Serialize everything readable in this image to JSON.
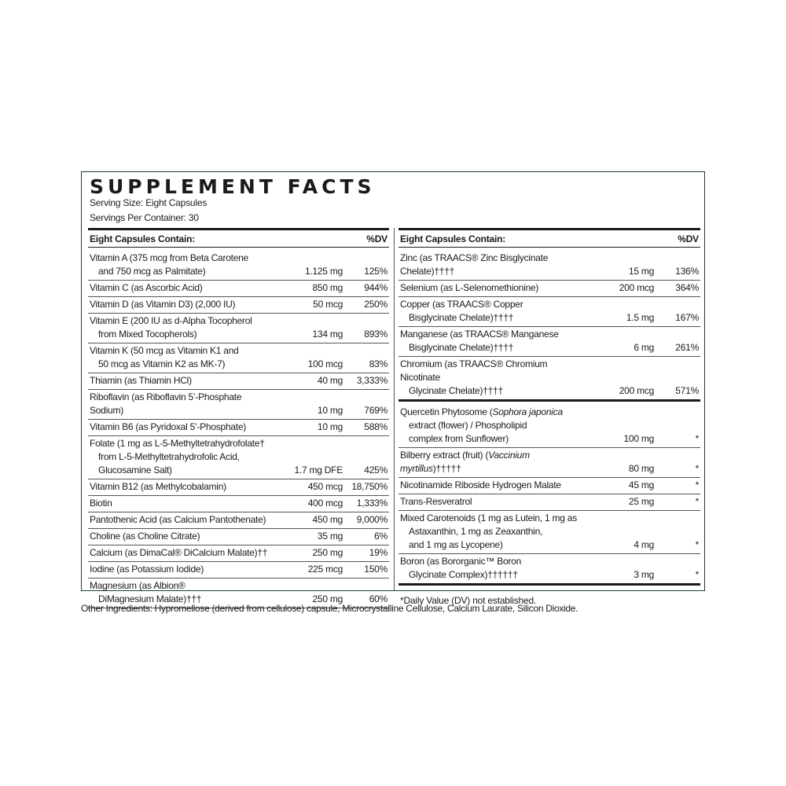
{
  "title": "SUPPLEMENT FACTS",
  "serving_size": "Serving Size: Eight Capsules",
  "servings_per_container": "Servings Per Container: 30",
  "colors": {
    "border": "#1f3a2d",
    "text": "#1a1a1a"
  },
  "left": {
    "header": {
      "label": "Eight Capsules Contain:",
      "dv": "%DV"
    },
    "rows": [
      {
        "lines": [
          "Vitamin A (375 mcg from Beta Carotene",
          "and 750 mcg as Palmitate)"
        ],
        "amount": "1.125 mg",
        "dv": "125%"
      },
      {
        "lines": [
          "Vitamin C (as Ascorbic Acid)"
        ],
        "amount": "850 mg",
        "dv": "944%"
      },
      {
        "lines": [
          "Vitamin D (as Vitamin D3) (2,000 IU)"
        ],
        "amount": "50 mcg",
        "dv": "250%"
      },
      {
        "lines": [
          "Vitamin E (200 IU as d-Alpha Tocopherol",
          "from Mixed Tocopherols)"
        ],
        "amount": "134 mg",
        "dv": "893%"
      },
      {
        "lines": [
          "Vitamin K (50 mcg as Vitamin K1 and",
          "50 mcg as Vitamin K2 as MK-7)"
        ],
        "amount": "100 mcg",
        "dv": "83%"
      },
      {
        "lines": [
          "Thiamin (as Thiamin HCl)"
        ],
        "amount": "40 mg",
        "dv": "3,333%"
      },
      {
        "lines": [
          "Riboflavin (as Riboflavin 5’-Phosphate Sodium)"
        ],
        "amount": "10 mg",
        "dv": "769%"
      },
      {
        "lines": [
          "Vitamin B6 (as Pyridoxal 5’-Phosphate)"
        ],
        "amount": "10 mg",
        "dv": "588%"
      },
      {
        "lines": [
          "Folate (1 mg as L-5-Methyltetrahydrofolate†",
          "from L-5-Methyltetrahydrofolic Acid,",
          "Glucosamine Salt)"
        ],
        "amount": "1.7 mg DFE",
        "dv": "425%"
      },
      {
        "lines": [
          "Vitamin B12 (as Methylcobalamin)"
        ],
        "amount": "450 mcg",
        "dv": "18,750%"
      },
      {
        "lines": [
          "Biotin"
        ],
        "amount": "400 mcg",
        "dv": "1,333%"
      },
      {
        "lines": [
          "Pantothenic Acid (as Calcium Pantothenate)"
        ],
        "amount": "450 mg",
        "dv": "9,000%"
      },
      {
        "lines": [
          "Choline (as Choline Citrate)"
        ],
        "amount": "35 mg",
        "dv": "6%"
      },
      {
        "lines": [
          "Calcium (as DimaCal® DiCalcium Malate)††"
        ],
        "amount": "250 mg",
        "dv": "19%"
      },
      {
        "lines": [
          "Iodine (as Potassium Iodide)"
        ],
        "amount": "225 mcg",
        "dv": "150%"
      },
      {
        "lines": [
          "Magnesium (as Albion®",
          "DiMagnesium Malate)†††"
        ],
        "amount": "250 mg",
        "dv": "60%"
      }
    ]
  },
  "right": {
    "header": {
      "label": "Eight Capsules Contain:",
      "dv": "%DV"
    },
    "rows": [
      {
        "lines": [
          "Zinc (as TRAACS® Zinc Bisglycinate Chelate)††††"
        ],
        "amount": "15 mg",
        "dv": "136%"
      },
      {
        "lines": [
          "Selenium (as L-Selenomethionine)"
        ],
        "amount": "200 mcg",
        "dv": "364%"
      },
      {
        "lines": [
          "Copper (as TRAACS® Copper",
          "Bisglycinate Chelate)††††"
        ],
        "amount": "1.5 mg",
        "dv": "167%"
      },
      {
        "lines": [
          "Manganese (as TRAACS® Manganese",
          "Bisglycinate Chelate)††††"
        ],
        "amount": "6 mg",
        "dv": "261%"
      },
      {
        "lines": [
          "Chromium (as TRAACS® Chromium Nicotinate",
          "Glycinate Chelate)††††"
        ],
        "amount": "200 mcg",
        "dv": "571%",
        "thick": true
      },
      {
        "lines": [
          [
            "Quercetin Phytosome (",
            {
              "i": "Sophora japonica"
            }
          ],
          "extract (flower) / Phospholipid",
          "complex from Sunflower)"
        ],
        "amount": "100 mg",
        "dv": "*"
      },
      {
        "lines": [
          [
            "Bilberry extract (fruit) (",
            {
              "i": "Vaccinium myrtillus"
            },
            ")†††††"
          ]
        ],
        "amount": "80 mg",
        "dv": "*"
      },
      {
        "lines": [
          "Nicotinamide Riboside Hydrogen Malate"
        ],
        "amount": "45 mg",
        "dv": "*"
      },
      {
        "lines": [
          "Trans-Resveratrol"
        ],
        "amount": "25 mg",
        "dv": "*"
      },
      {
        "lines": [
          "Mixed Carotenoids (1 mg as Lutein, 1 mg as",
          "Astaxanthin, 1 mg as Zeaxanthin,",
          "and 1 mg as Lycopene)"
        ],
        "amount": "4 mg",
        "dv": "*"
      },
      {
        "lines": [
          "Boron (as Bororganic™ Boron",
          "Glycinate Complex)††††††"
        ],
        "amount": "3 mg",
        "dv": "*",
        "thick": true
      }
    ],
    "footnote": "*Daily Value (DV) not established."
  },
  "other_ingredients": "Other Ingredients: Hypromellose (derived from cellulose) capsule, Microcrystalline Cellulose, Calcium Laurate, Silicon Dioxide."
}
